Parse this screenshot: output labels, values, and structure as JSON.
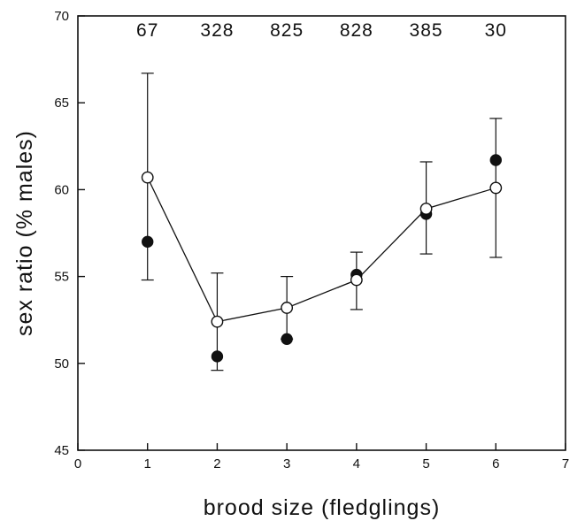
{
  "chart_data": {
    "type": "scatter",
    "title": "",
    "xlabel": "brood size (fledglings)",
    "ylabel": "sex ratio (% males)",
    "xlim": [
      0,
      7
    ],
    "ylim": [
      45,
      70
    ],
    "xticks": [
      0,
      1,
      2,
      3,
      4,
      5,
      6,
      7
    ],
    "yticks": [
      45,
      50,
      55,
      60,
      65,
      70
    ],
    "grid": false,
    "legend": "none",
    "sample_sizes": [
      {
        "x": 1,
        "label": "67"
      },
      {
        "x": 2,
        "label": "328"
      },
      {
        "x": 3,
        "label": "825"
      },
      {
        "x": 4,
        "label": "828"
      },
      {
        "x": 5,
        "label": "385"
      },
      {
        "x": 6,
        "label": "30"
      }
    ],
    "series": [
      {
        "marker": "open-circle",
        "connected": true,
        "error_bars": true,
        "points": [
          {
            "x": 1,
            "y": 60.7,
            "lower": 54.8,
            "upper": 66.7
          },
          {
            "x": 2,
            "y": 52.4,
            "lower": 49.6,
            "upper": 55.2
          },
          {
            "x": 3,
            "y": 53.2,
            "lower": 51.4,
            "upper": 55.0
          },
          {
            "x": 4,
            "y": 54.8,
            "lower": 53.1,
            "upper": 56.4
          },
          {
            "x": 5,
            "y": 58.9,
            "lower": 56.3,
            "upper": 61.6
          },
          {
            "x": 6,
            "y": 60.1,
            "lower": 56.1,
            "upper": 64.1
          }
        ]
      },
      {
        "marker": "filled-circle",
        "connected": false,
        "error_bars": false,
        "points": [
          {
            "x": 1,
            "y": 57.0
          },
          {
            "x": 2,
            "y": 50.4
          },
          {
            "x": 3,
            "y": 51.4
          },
          {
            "x": 4,
            "y": 55.1
          },
          {
            "x": 5,
            "y": 58.6
          },
          {
            "x": 6,
            "y": 61.7
          }
        ]
      }
    ]
  }
}
